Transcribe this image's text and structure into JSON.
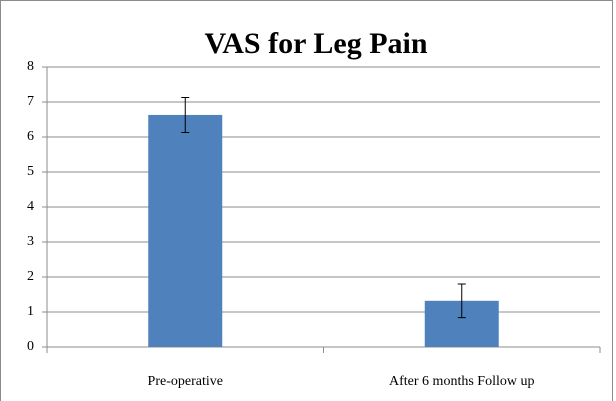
{
  "chart_data": {
    "type": "bar",
    "title": "VAS for Leg Pain",
    "categories": [
      "Pre-operative",
      "After 6 months Follow up"
    ],
    "values": [
      6.63,
      1.32
    ],
    "errors": [
      0.5,
      0.48
    ],
    "color": "#4f81bd",
    "ylim": [
      0,
      8
    ],
    "yticks": [
      0,
      1,
      2,
      3,
      4,
      5,
      6,
      7,
      8
    ],
    "grid": true
  }
}
